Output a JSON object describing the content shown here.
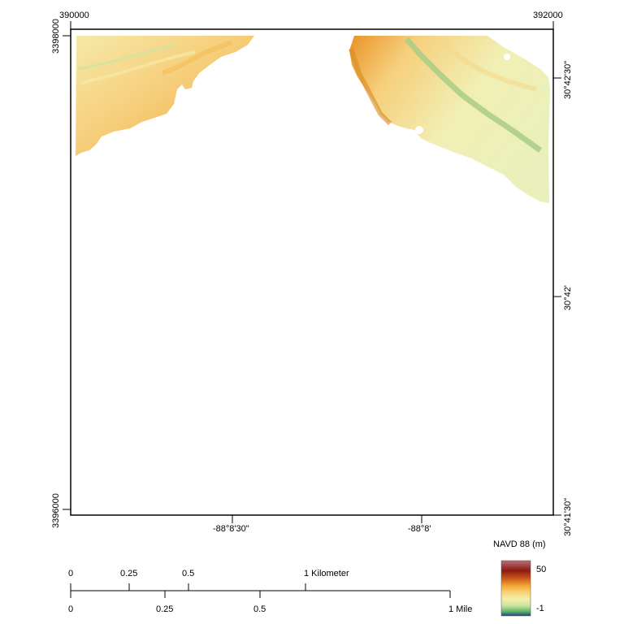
{
  "map": {
    "grid_x_labels": {
      "left": "390000",
      "right": "392000"
    },
    "grid_y_labels": {
      "top": "3398000",
      "bottom": "3396000"
    },
    "lon_labels": [
      "-88°8'30\"",
      "-88°8'"
    ],
    "lat_labels": [
      "30°42'30\"",
      "30°42'",
      "30°41'30\""
    ]
  },
  "legend": {
    "title": "NAVD 88 (m)",
    "max_label": "50",
    "min_label": "-1",
    "colors": [
      "#b6707a",
      "#8c1a12",
      "#c9561a",
      "#f2a531",
      "#f7d57a",
      "#f3efab",
      "#c8e29b",
      "#5fb56a",
      "#1f3f8a"
    ]
  },
  "scale_bar": {
    "km_ticks": [
      "0",
      "0.25",
      "0.5",
      "1 Kilometer"
    ],
    "mile_ticks": [
      "0",
      "0.25",
      "0.5",
      "1 Mile"
    ]
  }
}
